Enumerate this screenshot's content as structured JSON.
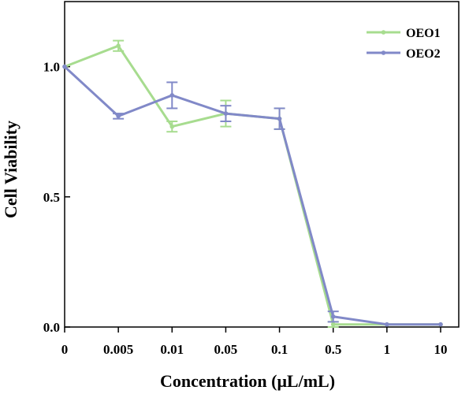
{
  "chart_data": {
    "type": "line",
    "title": "",
    "xlabel": "Concentration (μL/mL)",
    "ylabel": "Cell Viability",
    "categories": [
      "0",
      "0.005",
      "0.01",
      "0.05",
      "0.1",
      "0.5",
      "1",
      "10"
    ],
    "ylim": [
      0,
      1.25
    ],
    "yticks": [
      0.0,
      0.5,
      1.0
    ],
    "ytick_labels": [
      "0.0",
      "0.5",
      "1.0"
    ],
    "grid": false,
    "legend_position": "top-right",
    "series": [
      {
        "name": "OEO1",
        "color": "#a7dc8f",
        "values": [
          1.0,
          1.08,
          0.77,
          0.82,
          0.8,
          0.01,
          0.01,
          0.01
        ],
        "errors": [
          0.0,
          0.02,
          0.02,
          0.05,
          0.04,
          0.01,
          0.0,
          0.0
        ]
      },
      {
        "name": "OEO2",
        "color": "#8189c8",
        "values": [
          1.0,
          0.81,
          0.89,
          0.82,
          0.8,
          0.04,
          0.01,
          0.01
        ],
        "errors": [
          0.0,
          0.01,
          0.05,
          0.03,
          0.04,
          0.02,
          0.0,
          0.0
        ]
      }
    ]
  }
}
